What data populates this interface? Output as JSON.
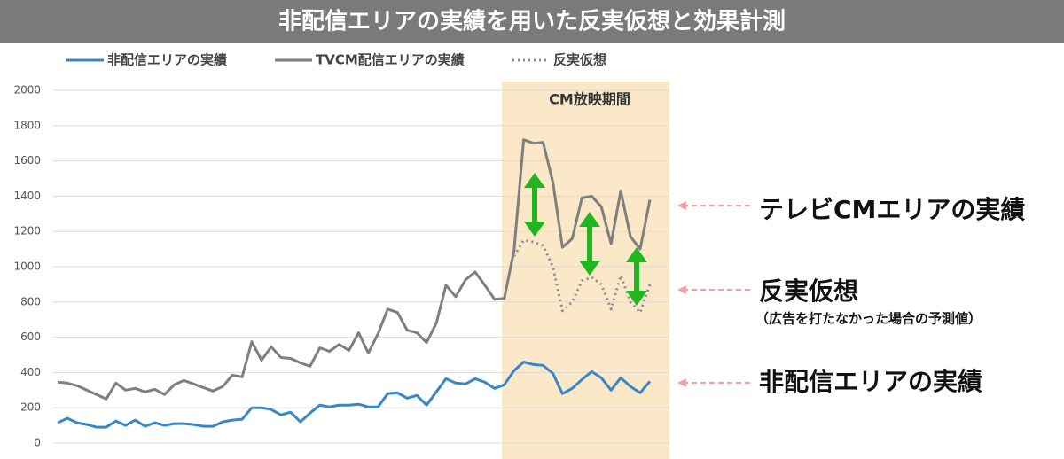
{
  "chart_data": {
    "type": "line",
    "title": "非配信エリアの実績を用いた反実仮想と効果計測",
    "categories": [
      null,
      null,
      null,
      null,
      null,
      null,
      null,
      null,
      null,
      null,
      null,
      null,
      null,
      null,
      null,
      null,
      null,
      null,
      null,
      null,
      null,
      null,
      null,
      null,
      null,
      null,
      null,
      null,
      null,
      null,
      null,
      null,
      null,
      null,
      null,
      null,
      null,
      null,
      null,
      null,
      null,
      null,
      null,
      null,
      null,
      null,
      null,
      null,
      null,
      null,
      null,
      null,
      null,
      null,
      null,
      null,
      null,
      null,
      null,
      null,
      null,
      null
    ],
    "series": [
      {
        "name": "非配信エリアの実績",
        "color": "#3a87c8",
        "style": "solid",
        "values": [
          115,
          140,
          115,
          105,
          90,
          90,
          125,
          100,
          130,
          95,
          115,
          100,
          110,
          110,
          105,
          95,
          95,
          120,
          130,
          135,
          200,
          200,
          190,
          160,
          175,
          120,
          170,
          215,
          205,
          215,
          215,
          220,
          205,
          205,
          280,
          285,
          255,
          270,
          215,
          290,
          365,
          340,
          335,
          365,
          345,
          310,
          330,
          410,
          460,
          445,
          440,
          395,
          280,
          310,
          360,
          405,
          370,
          300,
          370,
          320,
          285,
          350
        ]
      },
      {
        "name": "TVCM配信エリアの実績",
        "color": "#7f7f7f",
        "style": "solid",
        "values": [
          345,
          340,
          325,
          300,
          275,
          250,
          340,
          300,
          310,
          290,
          305,
          275,
          330,
          355,
          335,
          315,
          295,
          320,
          385,
          375,
          575,
          470,
          545,
          485,
          480,
          455,
          435,
          540,
          520,
          560,
          525,
          625,
          510,
          620,
          760,
          740,
          640,
          625,
          570,
          680,
          895,
          830,
          925,
          970,
          895,
          815,
          820,
          1090,
          1720,
          1700,
          1705,
          1480,
          1110,
          1160,
          1390,
          1400,
          1340,
          1130,
          1430,
          1170,
          1100,
          1380
        ]
      },
      {
        "name": "反実仮想",
        "color": "#8c8c8c",
        "style": "dotted",
        "values": [
          null,
          null,
          null,
          null,
          null,
          null,
          null,
          null,
          null,
          null,
          null,
          null,
          null,
          null,
          null,
          null,
          null,
          null,
          null,
          null,
          null,
          null,
          null,
          null,
          null,
          null,
          null,
          null,
          null,
          null,
          null,
          null,
          null,
          null,
          null,
          null,
          null,
          null,
          null,
          null,
          null,
          null,
          null,
          null,
          null,
          null,
          null,
          1060,
          1150,
          1140,
          1120,
          1000,
          750,
          800,
          920,
          940,
          900,
          760,
          950,
          800,
          740,
          900
        ]
      }
    ],
    "ylim": [
      0,
      2000
    ],
    "yticks": [
      0,
      200,
      400,
      600,
      800,
      1000,
      1200,
      1400,
      1600,
      1800,
      2000
    ],
    "grid": true,
    "highlight_label": "CM放映期間",
    "annotations": [
      "テレビCMエリアの実績",
      "反実仮想",
      "（広告を打たなかった場合の予測値）",
      "非配信エリアの実績"
    ]
  }
}
